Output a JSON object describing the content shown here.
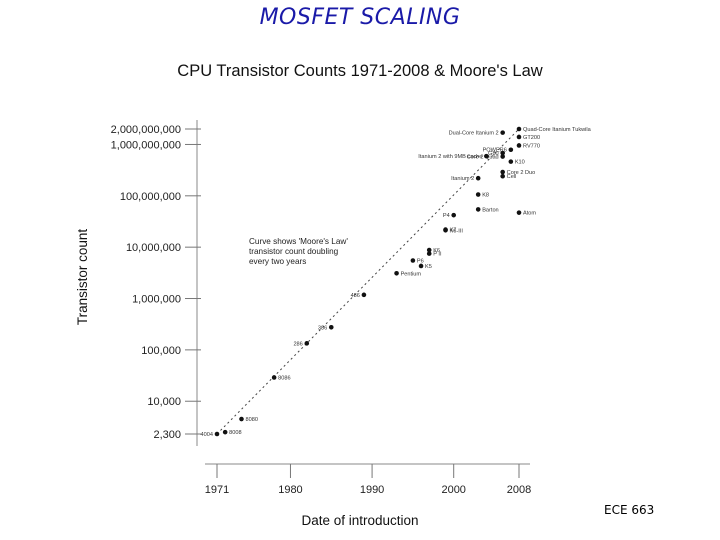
{
  "slide": {
    "title": "MOSFET SCALING",
    "footer": "ECE 663"
  },
  "chart_data": {
    "type": "scatter",
    "title": "CPU Transistor Counts 1971-2008 & Moore's Law",
    "xlabel": "Date of introduction",
    "ylabel": "Transistor count",
    "x_scale": "linear",
    "y_scale": "log",
    "xlim": [
      1971,
      2010
    ],
    "ylim": [
      2000,
      2500000000
    ],
    "x_ticks": [
      1971,
      1980,
      1990,
      2000,
      2008
    ],
    "y_ticks": [
      {
        "value": 2300,
        "label": "2,300"
      },
      {
        "value": 10000,
        "label": "10,000"
      },
      {
        "value": 100000,
        "label": "100,000"
      },
      {
        "value": 1000000,
        "label": "1,000,000"
      },
      {
        "value": 10000000,
        "label": "10,000,000"
      },
      {
        "value": 100000000,
        "label": "100,000,000"
      },
      {
        "value": 1000000000,
        "label": "1,000,000,000"
      },
      {
        "value": 2000000000,
        "label": "2,000,000,000"
      }
    ],
    "annotation": [
      "Curve shows 'Moore's Law'",
      "transistor count doubling",
      "every two years"
    ],
    "trend_line": {
      "style": "dashed",
      "x": [
        1971,
        2008
      ],
      "y": [
        2300,
        2000000000
      ]
    },
    "points": [
      {
        "label": "4004",
        "x": 1971,
        "y": 2300,
        "label_side": "left"
      },
      {
        "label": "8008",
        "x": 1972,
        "y": 2500,
        "label_side": "right"
      },
      {
        "label": "8080",
        "x": 1974,
        "y": 4500,
        "label_side": "right"
      },
      {
        "label": "8086",
        "x": 1978,
        "y": 29000,
        "label_side": "right"
      },
      {
        "label": "286",
        "x": 1982,
        "y": 134000,
        "label_side": "left"
      },
      {
        "label": "386",
        "x": 1985,
        "y": 275000,
        "label_side": "left"
      },
      {
        "label": "486",
        "x": 1989,
        "y": 1180000,
        "label_side": "left"
      },
      {
        "label": "Pentium",
        "x": 1993,
        "y": 3100000,
        "label_side": "right"
      },
      {
        "label": "K5",
        "x": 1996,
        "y": 4300000,
        "label_side": "right"
      },
      {
        "label": "P6",
        "x": 1995,
        "y": 5500000,
        "label_side": "right"
      },
      {
        "label": "P II",
        "x": 1997,
        "y": 7500000,
        "label_side": "right"
      },
      {
        "label": "K6",
        "x": 1997,
        "y": 8800000,
        "label_side": "right"
      },
      {
        "label": "K6-III",
        "x": 1999,
        "y": 21300000,
        "label_side": "right"
      },
      {
        "label": "K7",
        "x": 1999,
        "y": 22000000,
        "label_side": "right"
      },
      {
        "label": "P4",
        "x": 2000,
        "y": 42000000,
        "label_side": "left"
      },
      {
        "label": "Barton",
        "x": 2003,
        "y": 54300000,
        "label_side": "right"
      },
      {
        "label": "K8",
        "x": 2003,
        "y": 105900000,
        "label_side": "right"
      },
      {
        "label": "Atom",
        "x": 2008,
        "y": 47000000,
        "label_side": "right"
      },
      {
        "label": "Itanium 2",
        "x": 2003,
        "y": 220000000,
        "label_side": "left"
      },
      {
        "label": "Core 2 Duo",
        "x": 2006,
        "y": 291000000,
        "label_side": "right"
      },
      {
        "label": "Cell",
        "x": 2006,
        "y": 241000000,
        "label_side": "right"
      },
      {
        "label": "Core 2 Quad",
        "x": 2006,
        "y": 582000000,
        "label_side": "left"
      },
      {
        "label": "K10",
        "x": 2007,
        "y": 463000000,
        "label_side": "right"
      },
      {
        "label": "Itanium 2 with 9MB cache",
        "x": 2004,
        "y": 592000000,
        "label_side": "left"
      },
      {
        "label": "G80",
        "x": 2006,
        "y": 681000000,
        "label_side": "left"
      },
      {
        "label": "POWER6",
        "x": 2007,
        "y": 789000000,
        "label_side": "left"
      },
      {
        "label": "RV770",
        "x": 2008,
        "y": 956000000,
        "label_side": "right"
      },
      {
        "label": "GT200",
        "x": 2008,
        "y": 1400000000,
        "label_side": "right"
      },
      {
        "label": "Dual-Core Itanium 2",
        "x": 2006,
        "y": 1700000000,
        "label_side": "left"
      },
      {
        "label": "Quad-Core Itanium Tukwila",
        "x": 2008,
        "y": 2000000000,
        "label_side": "right"
      }
    ]
  }
}
